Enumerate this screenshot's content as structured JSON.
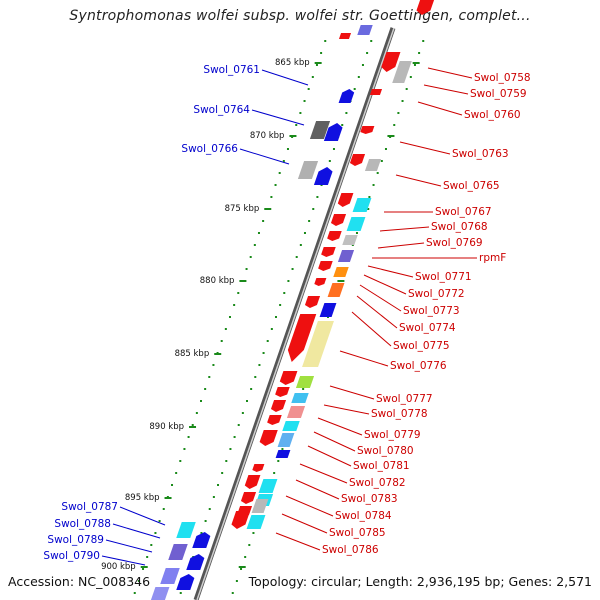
{
  "title": "Syntrophomonas wolfei subsp. wolfei str. Goettingen, complet...",
  "footer": {
    "accession": "Accession: NC_008346",
    "topology": "Topology: circular; Length: 2,936,195 bp; Genes: 2,571"
  },
  "colors": {
    "forward_label": "#0000cc",
    "reverse_label": "#cc0000",
    "tick": "#1a8a1a"
  },
  "scale_ticks": [
    "865 kbp",
    "870 kbp",
    "875 kbp",
    "880 kbp",
    "885 kbp",
    "890 kbp",
    "895 kbp",
    "900 kbp"
  ],
  "forward_genes": [
    "Swol_0761",
    "Swol_0764",
    "Swol_0766",
    "Swol_0787",
    "Swol_0788",
    "Swol_0789",
    "Swol_0790"
  ],
  "reverse_genes": [
    "Swol_0758",
    "Swol_0759",
    "Swol_0760",
    "Swol_0763",
    "Swol_0765",
    "Swol_0767",
    "Swol_0768",
    "Swol_0769",
    "rpmF",
    "Swol_0771",
    "Swol_0772",
    "Swol_0773",
    "Swol_0774",
    "Swol_0775",
    "Swol_0776",
    "Swol_0777",
    "Swol_0778",
    "Swol_0779",
    "Swol_0780",
    "Swol_0781",
    "Swol_0782",
    "Swol_0783",
    "Swol_0784",
    "Swol_0785",
    "Swol_0786"
  ]
}
